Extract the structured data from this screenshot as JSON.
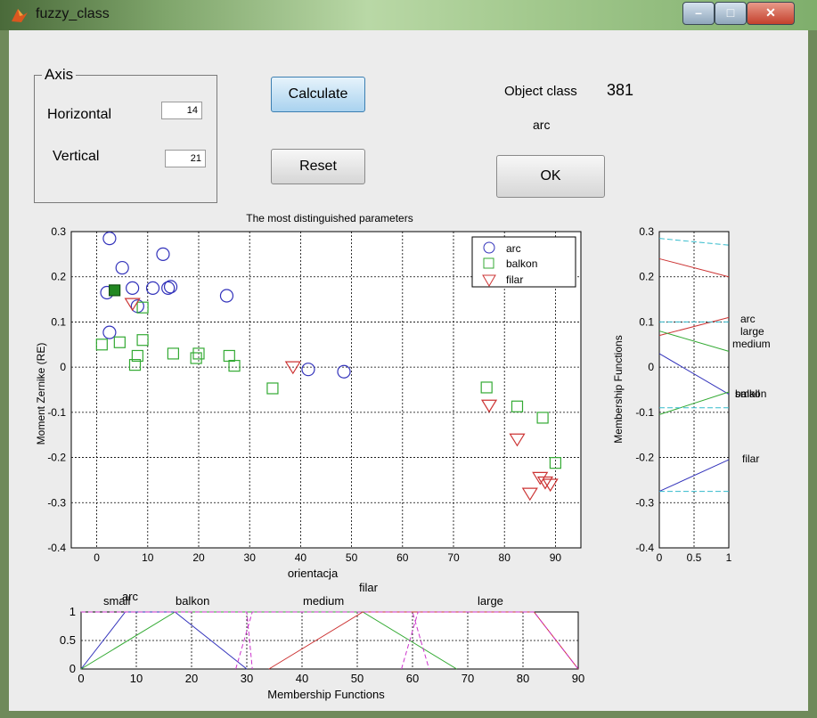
{
  "window": {
    "title": "fuzzy_class",
    "controls": {
      "minimize": "–",
      "maximize": "□",
      "close": "✕"
    }
  },
  "axis_panel": {
    "legend": "Axis",
    "horizontal_label": "Horizontal",
    "horizontal_value": "14",
    "vertical_label": "Vertical",
    "vertical_value": "21"
  },
  "buttons": {
    "calculate": "Calculate",
    "reset": "Reset",
    "ok": "OK"
  },
  "result": {
    "object_class_label": "Object class",
    "object_class_value": "381",
    "class_name": "arc"
  },
  "colors": {
    "arc": "#3333bb",
    "balkon": "#33aa33",
    "filar": "#cc3333",
    "cyan": "#33bbcc",
    "magenta": "#cc33cc",
    "grid": "#000000"
  },
  "chart_data": [
    {
      "type": "scatter",
      "title": "The most distinguished parameters",
      "xlabel": "orientacja",
      "ylabel": "Moment Zernike (RE)",
      "xlim": [
        -5,
        95
      ],
      "ylim": [
        -0.4,
        0.3
      ],
      "xticks": [
        0,
        10,
        20,
        30,
        40,
        50,
        60,
        70,
        80,
        90
      ],
      "yticks": [
        0.3,
        0.2,
        0.1,
        0,
        -0.1,
        -0.2,
        -0.3,
        -0.4
      ],
      "grid": true,
      "legend_position": "top-right",
      "series": [
        {
          "name": "arc",
          "marker": "circle",
          "points": [
            [
              2.5,
              0.285
            ],
            [
              5,
              0.22
            ],
            [
              13,
              0.25
            ],
            [
              2,
              0.165
            ],
            [
              7,
              0.175
            ],
            [
              11,
              0.175
            ],
            [
              14,
              0.175
            ],
            [
              14.5,
              0.178
            ],
            [
              25.5,
              0.158
            ],
            [
              8,
              0.135
            ],
            [
              2.5,
              0.077
            ],
            [
              41.5,
              -0.005
            ],
            [
              48.5,
              -0.01
            ]
          ]
        },
        {
          "name": "balkon",
          "marker": "square",
          "points": [
            [
              3.5,
              0.17
            ],
            [
              9,
              0.132
            ],
            [
              1,
              0.05
            ],
            [
              4.5,
              0.055
            ],
            [
              9,
              0.06
            ],
            [
              8,
              0.025
            ],
            [
              7.5,
              0.005
            ],
            [
              15,
              0.03
            ],
            [
              20,
              0.03
            ],
            [
              19.5,
              0.02
            ],
            [
              26,
              0.025
            ],
            [
              27,
              0.003
            ],
            [
              34.5,
              -0.047
            ],
            [
              76.5,
              -0.045
            ],
            [
              82.5,
              -0.087
            ],
            [
              87.5,
              -0.112
            ],
            [
              90,
              -0.212
            ]
          ]
        },
        {
          "name": "filar",
          "marker": "triangle-down",
          "points": [
            [
              7,
              0.14
            ],
            [
              38.5,
              0.0
            ],
            [
              77,
              -0.085
            ],
            [
              82.5,
              -0.16
            ],
            [
              87,
              -0.245
            ],
            [
              85,
              -0.28
            ],
            [
              88,
              -0.255
            ],
            [
              89,
              -0.26
            ]
          ]
        }
      ],
      "filled_marker": {
        "series": "balkon",
        "x": 3.5,
        "y": 0.17
      }
    },
    {
      "type": "line",
      "title": "",
      "xlabel": "",
      "ylabel": "Membership Functions",
      "xlim": [
        0,
        1
      ],
      "ylim": [
        -0.4,
        0.3
      ],
      "xticks": [
        "0",
        "0.5",
        "1"
      ],
      "yticks": [
        0.3,
        0.2,
        0.1,
        0,
        -0.1,
        -0.2,
        -0.3,
        -0.4
      ],
      "annotations": [
        "arc",
        "large",
        "medium",
        "balkon",
        "small",
        "filar"
      ],
      "series": [
        {
          "name": "",
          "color": "red",
          "points": [
            [
              0,
              0.24
            ],
            [
              1,
              0.2
            ]
          ]
        },
        {
          "name": "",
          "color": "red",
          "points": [
            [
              0,
              0.07
            ],
            [
              1,
              0.11
            ]
          ]
        },
        {
          "name": "",
          "color": "green",
          "points": [
            [
              0,
              0.08
            ],
            [
              1,
              0.035
            ]
          ]
        },
        {
          "name": "",
          "color": "blue",
          "points": [
            [
              0,
              0.03
            ],
            [
              1,
              -0.06
            ]
          ]
        },
        {
          "name": "",
          "color": "green",
          "points": [
            [
              0,
              -0.105
            ],
            [
              1,
              -0.055
            ]
          ]
        },
        {
          "name": "",
          "color": "blue",
          "points": [
            [
              0,
              -0.275
            ],
            [
              1,
              -0.205
            ]
          ]
        },
        {
          "name": "",
          "color": "cyan",
          "points": [
            [
              0,
              0.285
            ],
            [
              1,
              0.27
            ]
          ]
        },
        {
          "name": "",
          "color": "cyan",
          "points": [
            [
              0,
              -0.275
            ],
            [
              1,
              -0.275
            ]
          ]
        },
        {
          "name": "",
          "color": "cyan",
          "points": [
            [
              0,
              0.1
            ],
            [
              1,
              0.1
            ]
          ]
        },
        {
          "name": "",
          "color": "cyan",
          "points": [
            [
              0,
              -0.09
            ],
            [
              1,
              -0.09
            ]
          ]
        }
      ]
    },
    {
      "type": "line",
      "title": "",
      "xlabel": "Membership Functions",
      "ylabel": "",
      "xlim": [
        0,
        90
      ],
      "ylim": [
        0,
        1
      ],
      "xticks": [
        0,
        10,
        20,
        30,
        40,
        50,
        60,
        70,
        80,
        90
      ],
      "yticks": [
        1,
        0.5,
        0
      ],
      "annotations": [
        "small",
        "arc",
        "balkon",
        "medium",
        "filar",
        "large"
      ],
      "series": [
        {
          "name": "",
          "color": "blue",
          "points": [
            [
              0,
              0
            ],
            [
              8,
              1
            ],
            [
              17,
              1
            ],
            [
              30,
              0
            ]
          ]
        },
        {
          "name": "",
          "color": "green",
          "points": [
            [
              0,
              0
            ],
            [
              17,
              1
            ],
            [
              51,
              1
            ],
            [
              68,
              0
            ]
          ]
        },
        {
          "name": "",
          "color": "red",
          "points": [
            [
              0,
              0
            ],
            [
              0,
              0
            ],
            [
              0,
              0
            ]
          ]
        },
        {
          "name": "",
          "color": "red",
          "points": [
            [
              34,
              0
            ],
            [
              51,
              1
            ],
            [
              82,
              1
            ],
            [
              90,
              0
            ]
          ]
        },
        {
          "name": "",
          "color": "magenta",
          "points": [
            [
              0,
              1
            ],
            [
              30,
              1
            ],
            [
              31,
              0
            ]
          ]
        },
        {
          "name": "",
          "color": "magenta",
          "points": [
            [
              28,
              0
            ],
            [
              31,
              1
            ],
            [
              60,
              1
            ],
            [
              63,
              0
            ]
          ]
        },
        {
          "name": "",
          "color": "magenta",
          "points": [
            [
              58,
              0
            ],
            [
              61,
              1
            ],
            [
              82,
              1
            ],
            [
              90,
              0
            ]
          ]
        }
      ]
    }
  ]
}
